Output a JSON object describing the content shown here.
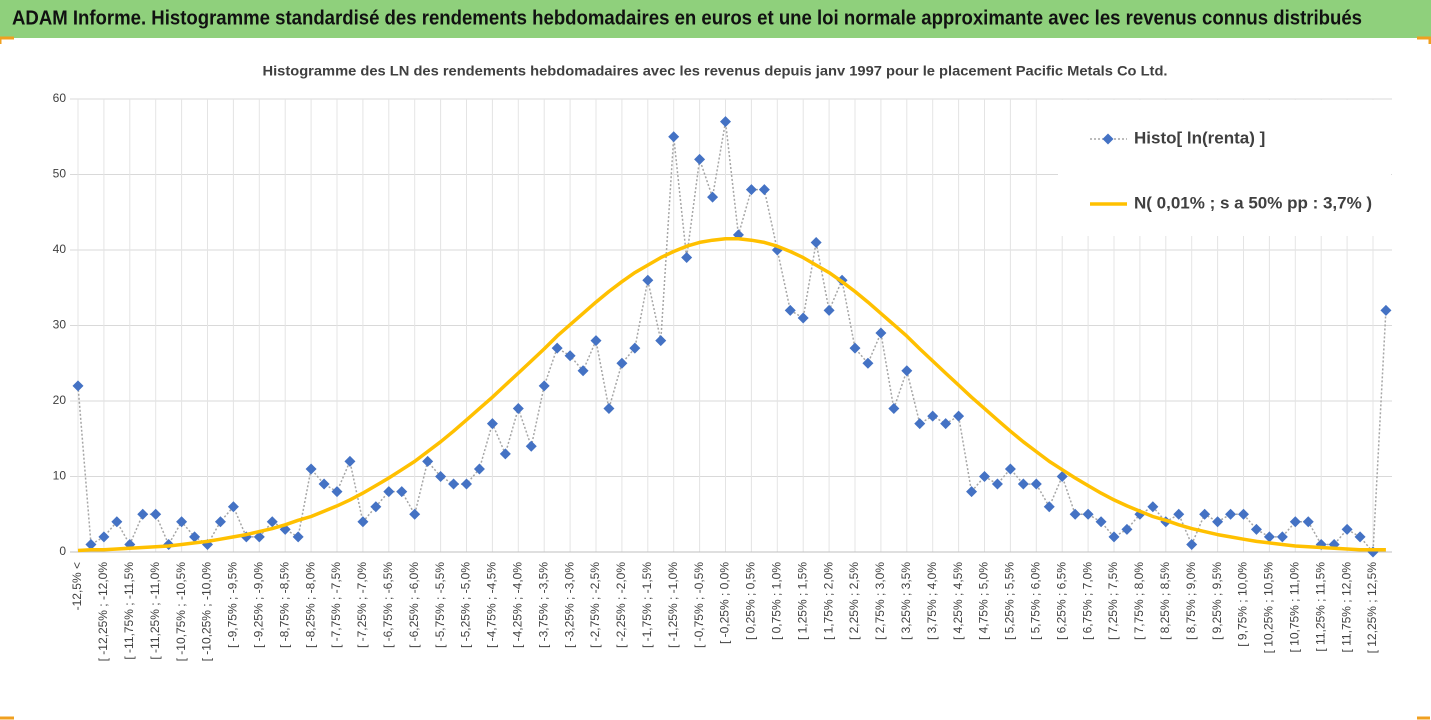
{
  "header": {
    "title": "ADAM Informe. Histogramme standardisé des rendements hebdomadaires en euros et une loi normale approximante avec les revenus connus distribués"
  },
  "chart_data": {
    "type": "line",
    "title": "Histogramme  des LN des rendements hebdomadaires avec les revenus depuis janv 1997 pour le placement Pacific Metals Co Ltd.",
    "categories": [
      "-12,5% <",
      null,
      "[ -12,25% ; -12,0%",
      null,
      "[ -11,75% ; -11,5%",
      null,
      "[ -11,25% ; -11,0%",
      null,
      "[ -10,75% ; -10,5%",
      null,
      "[ -10,25% ; -10,0%",
      null,
      "[ -9,75% ; -9,5%",
      null,
      "[ -9,25% ; -9,0%",
      null,
      "[ -8,75% ; -8,5%",
      null,
      "[ -8,25% ; -8,0%",
      null,
      "[ -7,75% ; -7,5%",
      null,
      "[ -7,25% ; -7,0%",
      null,
      "[ -6,75% ; -6,5%",
      null,
      "[ -6,25% ; -6,0%",
      null,
      "[ -5,75% ; -5,5%",
      null,
      "[ -5,25% ; -5,0%",
      null,
      "[ -4,75% ; -4,5%",
      null,
      "[ -4,25% ; -4,0%",
      null,
      "[ -3,75% ; -3,5%",
      null,
      "[ -3,25% ; -3,0%",
      null,
      "[ -2,75% ; -2,5%",
      null,
      "[ -2,25% ; -2,0%",
      null,
      "[ -1,75% ; -1,5%",
      null,
      "[ -1,25% ; -1,0%",
      null,
      "[ -0,75% ; -0,5%",
      null,
      "[ -0,25% ; 0,0%",
      null,
      "[ 0,25% ; 0,5%",
      null,
      "[ 0,75% ; 1,0%",
      null,
      "[ 1,25% ; 1,5%",
      null,
      "[ 1,75% ; 2,0%",
      null,
      "[ 2,25% ; 2,5%",
      null,
      "[ 2,75% ; 3,0%",
      null,
      "[ 3,25% ; 3,5%",
      null,
      "[ 3,75% ; 4,0%",
      null,
      "[ 4,25% ; 4,5%",
      null,
      "[ 4,75% ; 5,0%",
      null,
      "[ 5,25% ; 5,5%",
      null,
      "[ 5,75% ; 6,0%",
      null,
      "[ 6,25% ; 6,5%",
      null,
      "[ 6,75% ; 7,0%",
      null,
      "[ 7,25% ; 7,5%",
      null,
      "[ 7,75% ; 8,0%",
      null,
      "[ 8,25% ; 8,5%",
      null,
      "[ 8,75% ; 9,0%",
      null,
      "[ 9,25% ; 9,5%",
      null,
      "[ 9,75% ; 10,0%",
      null,
      "[ 10,25% ; 10,5%",
      null,
      "[ 10,75% ; 11,0%",
      null,
      "[ 11,25% ; 11,5%",
      null,
      "[ 11,75% ; 12,0%",
      null,
      "[ 12,25% ; 12,5%",
      null
    ],
    "series": [
      {
        "name": "Histo[ ln(renta) ]",
        "color": "#4472c4",
        "line_color": "#a6a6a6",
        "line_style": "dotted",
        "marker": "diamond",
        "values": [
          22,
          1,
          2,
          4,
          1,
          5,
          5,
          1,
          4,
          2,
          1,
          4,
          6,
          2,
          2,
          4,
          3,
          2,
          11,
          9,
          8,
          12,
          4,
          6,
          8,
          8,
          5,
          12,
          10,
          9,
          9,
          11,
          17,
          13,
          19,
          14,
          22,
          27,
          26,
          24,
          28,
          19,
          25,
          27,
          36,
          28,
          55,
          39,
          52,
          47,
          57,
          42,
          48,
          48,
          40,
          32,
          31,
          41,
          32,
          36,
          27,
          25,
          29,
          19,
          24,
          17,
          18,
          17,
          18,
          8,
          10,
          9,
          11,
          9,
          9,
          6,
          10,
          5,
          5,
          4,
          2,
          3,
          5,
          6,
          4,
          5,
          1,
          5,
          4,
          5,
          5,
          3,
          2,
          2,
          4,
          4,
          1,
          1,
          3,
          2,
          0,
          32
        ]
      },
      {
        "name": "N( 0,01% ; s a 50% pp : 3,7% )",
        "color": "#ffc000",
        "line_color": "#ffc000",
        "line_style": "solid",
        "values": [
          0.2,
          0.3,
          0.3,
          0.4,
          0.5,
          0.6,
          0.7,
          0.8,
          1.0,
          1.2,
          1.4,
          1.7,
          2.0,
          2.3,
          2.7,
          3.1,
          3.6,
          4.2,
          4.7,
          5.4,
          6.1,
          6.9,
          7.8,
          8.8,
          9.8,
          10.9,
          12.0,
          13.3,
          14.6,
          16.0,
          17.5,
          19.0,
          20.5,
          22.1,
          23.7,
          25.3,
          26.9,
          28.6,
          30.1,
          31.6,
          33.1,
          34.5,
          35.8,
          37.0,
          38.0,
          39.0,
          39.8,
          40.5,
          41.0,
          41.3,
          41.5,
          41.5,
          41.3,
          41.0,
          40.5,
          39.8,
          39.0,
          38.0,
          37.0,
          35.8,
          34.5,
          33.1,
          31.6,
          30.1,
          28.6,
          26.9,
          25.3,
          23.7,
          22.1,
          20.5,
          19.0,
          17.5,
          16.0,
          14.6,
          13.3,
          12.0,
          10.9,
          9.8,
          8.8,
          7.8,
          6.9,
          6.1,
          5.4,
          4.7,
          4.2,
          3.6,
          3.1,
          2.7,
          2.3,
          2.0,
          1.7,
          1.4,
          1.2,
          1.0,
          0.8,
          0.7,
          0.6,
          0.5,
          0.4,
          0.3,
          0.3,
          0.3
        ]
      }
    ],
    "ylim": [
      0,
      60
    ],
    "yticks": [
      0,
      10,
      20,
      30,
      40,
      50,
      60
    ],
    "grid": true,
    "legend": "top-right"
  }
}
